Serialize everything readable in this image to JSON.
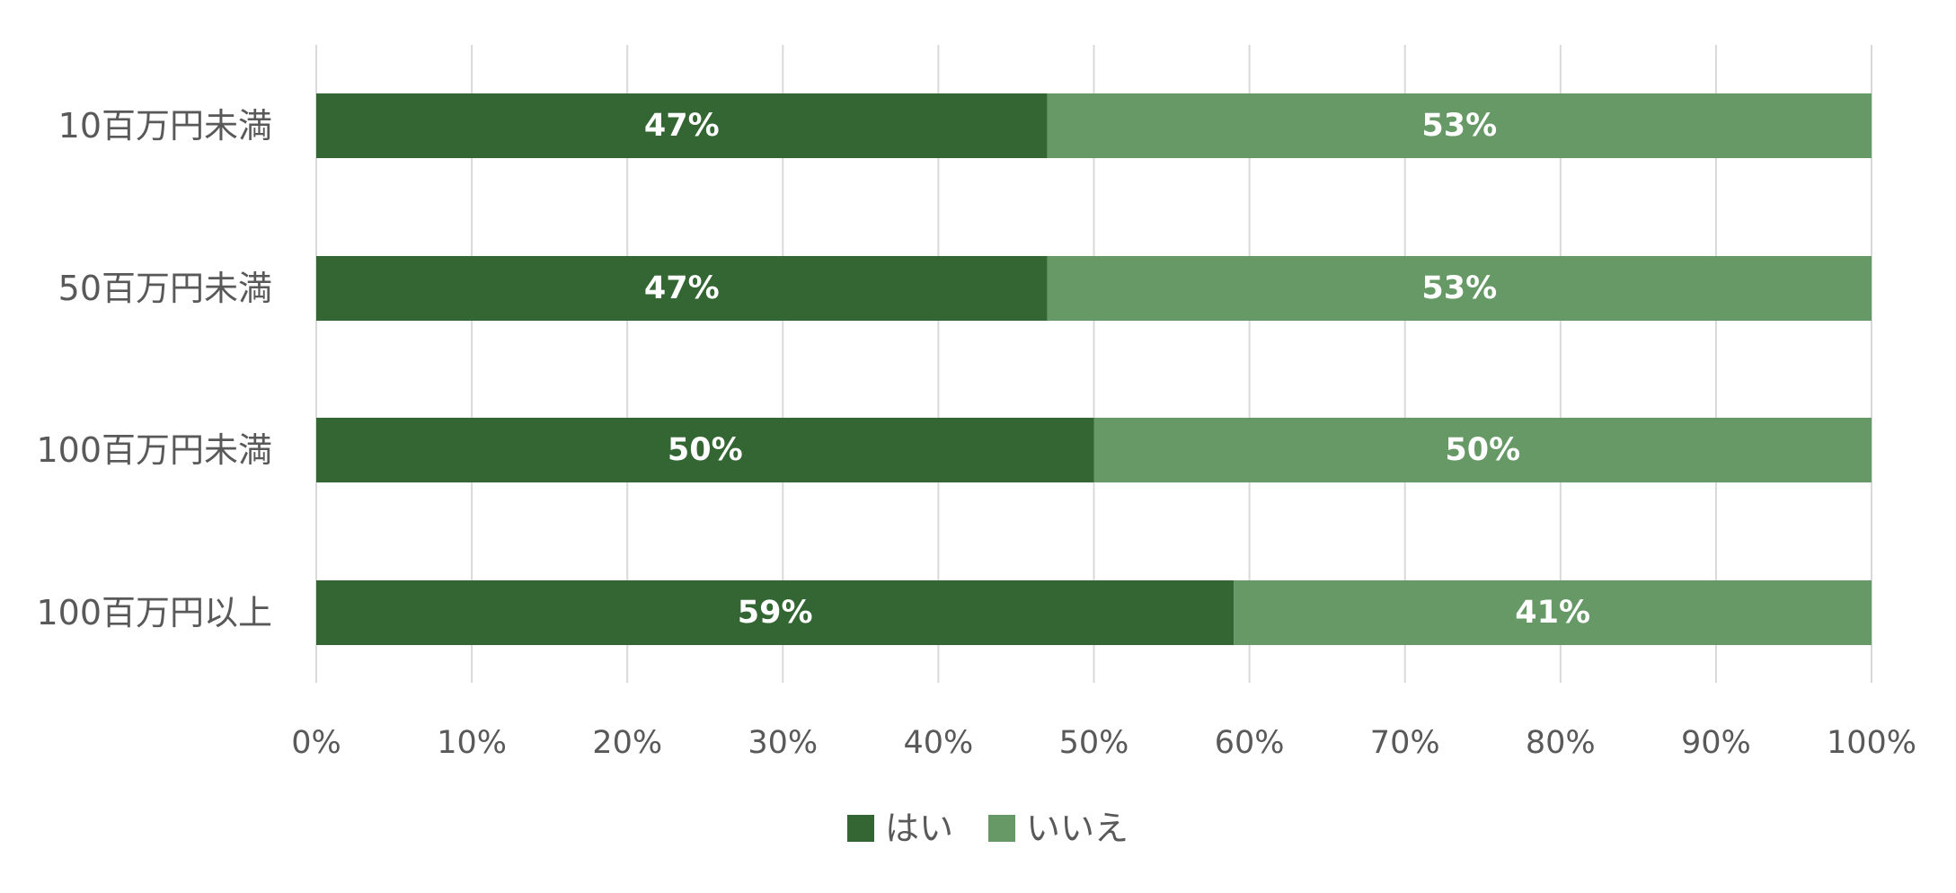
{
  "chart_data": {
    "type": "bar",
    "orientation": "horizontal",
    "stacked": "percent",
    "categories": [
      "10百万円未満",
      "50百万円未満",
      "100百万円未満",
      "100百万円以上"
    ],
    "series": [
      {
        "name": "はい",
        "values": [
          47,
          47,
          50,
          59
        ],
        "labels": [
          "47%",
          "47%",
          "50%",
          "59%"
        ]
      },
      {
        "name": "いいえ",
        "values": [
          53,
          53,
          50,
          41
        ],
        "labels": [
          "53%",
          "53%",
          "50%",
          "41%"
        ]
      }
    ],
    "xlim": [
      0,
      100
    ],
    "xticks": [
      0,
      10,
      20,
      30,
      40,
      50,
      60,
      70,
      80,
      90,
      100
    ],
    "xtick_labels": [
      "0%",
      "10%",
      "20%",
      "30%",
      "40%",
      "50%",
      "60%",
      "70%",
      "80%",
      "90%",
      "100%"
    ],
    "grid": "vertical",
    "legend_position": "bottom",
    "colors": {
      "はい": "#336633",
      "いいえ": "#669966"
    }
  }
}
